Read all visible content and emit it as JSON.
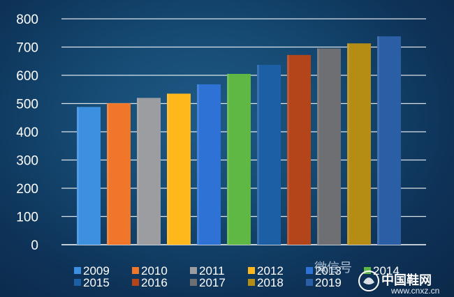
{
  "chart_data": {
    "type": "bar",
    "categories": [
      "2009",
      "2010",
      "2011",
      "2012",
      "2013",
      "2014",
      "2015",
      "2016",
      "2017",
      "2018",
      "2019"
    ],
    "values": [
      488,
      501,
      520,
      535,
      568,
      605,
      637,
      672,
      695,
      713,
      738
    ],
    "colors": [
      "#3d8fe0",
      "#f0772a",
      "#9b9da1",
      "#ffb81c",
      "#2f72d6",
      "#5fb843",
      "#1d5fa5",
      "#b4441a",
      "#6d6f72",
      "#b58c14",
      "#2a5fa6"
    ],
    "ylim": [
      0,
      800
    ],
    "yticks": [
      0,
      100,
      200,
      300,
      400,
      500,
      600,
      700,
      800
    ],
    "grid": true,
    "legend": {
      "placement": "bottom",
      "rows": [
        [
          "2009",
          "2010",
          "2011",
          "2012",
          "2013",
          "2014"
        ],
        [
          "2015",
          "2016",
          "2017",
          "2018",
          "2019"
        ]
      ]
    },
    "title": "",
    "xlabel": "",
    "ylabel": ""
  },
  "watermark": {
    "text": "微信号",
    "site": "www.cnxz.cn",
    "logo_text": "中国鞋网"
  }
}
